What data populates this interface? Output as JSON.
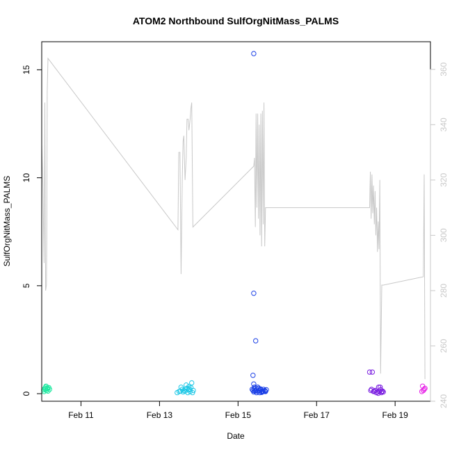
{
  "chart_data": {
    "type": "scatter",
    "title": "ATOM2 Northbound SulfOrgNitMass_PALMS",
    "xlabel": "Date",
    "ylabel": "SulfOrgNitMass_PALMS",
    "x_unit": "days (Feb)",
    "xlim": [
      10.0,
      19.9
    ],
    "ylim": [
      -0.35,
      16.3
    ],
    "x_ticks": [
      {
        "value": 11,
        "label": "Feb 11"
      },
      {
        "value": 13,
        "label": "Feb 13"
      },
      {
        "value": 15,
        "label": "Feb 15"
      },
      {
        "value": 17,
        "label": "Feb 17"
      },
      {
        "value": 19,
        "label": "Feb 19"
      }
    ],
    "y_ticks": [
      {
        "value": 0,
        "label": "0"
      },
      {
        "value": 5,
        "label": "5"
      },
      {
        "value": 10,
        "label": "10"
      },
      {
        "value": 15,
        "label": "15"
      }
    ],
    "y2lim": [
      240,
      370
    ],
    "y2_ticks": [
      {
        "value": 240,
        "label": "240"
      },
      {
        "value": 260,
        "label": "260"
      },
      {
        "value": 280,
        "label": "280"
      },
      {
        "value": 300,
        "label": "300"
      },
      {
        "value": 320,
        "label": "320"
      },
      {
        "value": 340,
        "label": "340"
      },
      {
        "value": 360,
        "label": "360"
      }
    ],
    "grid": false,
    "legend": "none",
    "series": [
      {
        "color": "#1ee8a0",
        "points": [
          [
            10.05,
            0.18
          ],
          [
            10.08,
            0.25
          ],
          [
            10.1,
            0.3
          ],
          [
            10.12,
            0.15
          ],
          [
            10.14,
            0.22
          ],
          [
            10.16,
            0.12
          ],
          [
            10.18,
            0.28
          ],
          [
            10.2,
            0.2
          ],
          [
            10.06,
            0.1
          ],
          [
            10.11,
            0.35
          ],
          [
            10.15,
            0.26
          ],
          [
            10.09,
            0.2
          ]
        ]
      },
      {
        "color": "#1ec8e6",
        "points": [
          [
            13.45,
            0.05
          ],
          [
            13.5,
            0.1
          ],
          [
            13.55,
            0.3
          ],
          [
            13.58,
            0.2
          ],
          [
            13.6,
            0.08
          ],
          [
            13.62,
            0.15
          ],
          [
            13.65,
            0.12
          ],
          [
            13.68,
            0.4
          ],
          [
            13.7,
            0.25
          ],
          [
            13.72,
            0.05
          ],
          [
            13.74,
            0.18
          ],
          [
            13.76,
            0.22
          ],
          [
            13.78,
            0.1
          ],
          [
            13.8,
            0.28
          ],
          [
            13.82,
            0.5
          ],
          [
            13.84,
            0.05
          ],
          [
            13.86,
            0.15
          ],
          [
            13.66,
            0.2
          ],
          [
            13.75,
            0.33
          ],
          [
            13.53,
            0.12
          ]
        ]
      },
      {
        "color": "#1a3fe6",
        "points": [
          [
            15.4,
            15.75
          ],
          [
            15.4,
            4.65
          ],
          [
            15.45,
            2.45
          ],
          [
            15.38,
            0.85
          ],
          [
            15.4,
            0.45
          ],
          [
            15.42,
            0.3
          ],
          [
            15.45,
            0.15
          ],
          [
            15.48,
            0.2
          ],
          [
            15.5,
            0.1
          ],
          [
            15.52,
            0.25
          ],
          [
            15.55,
            0.05
          ],
          [
            15.58,
            0.18
          ],
          [
            15.6,
            0.12
          ],
          [
            15.62,
            0.08
          ],
          [
            15.65,
            0.2
          ],
          [
            15.68,
            0.15
          ],
          [
            15.7,
            0.1
          ],
          [
            15.72,
            0.18
          ],
          [
            15.38,
            0.15
          ],
          [
            15.4,
            0.08
          ],
          [
            15.43,
            0.12
          ],
          [
            15.47,
            0.05
          ],
          [
            15.5,
            0.3
          ],
          [
            15.53,
            0.15
          ],
          [
            15.57,
            0.22
          ],
          [
            15.6,
            0.06
          ],
          [
            15.64,
            0.1
          ],
          [
            15.69,
            0.12
          ],
          [
            15.36,
            0.2
          ],
          [
            15.41,
            0.22
          ]
        ]
      },
      {
        "color": "#7a1ee0",
        "points": [
          [
            18.35,
            1.0
          ],
          [
            18.42,
            1.0
          ],
          [
            18.4,
            0.2
          ],
          [
            18.45,
            0.1
          ],
          [
            18.5,
            0.15
          ],
          [
            18.52,
            0.05
          ],
          [
            18.55,
            0.08
          ],
          [
            18.58,
            0.3
          ],
          [
            18.6,
            0.1
          ],
          [
            18.62,
            0.3
          ],
          [
            18.65,
            0.05
          ],
          [
            18.68,
            0.12
          ],
          [
            18.7,
            0.08
          ],
          [
            18.38,
            0.15
          ],
          [
            18.47,
            0.12
          ],
          [
            18.63,
            0.18
          ],
          [
            18.57,
            0.02
          ],
          [
            18.66,
            0.1
          ]
        ]
      },
      {
        "color": "#e61ee6",
        "points": [
          [
            19.7,
            0.35
          ],
          [
            19.72,
            0.15
          ],
          [
            19.74,
            0.2
          ],
          [
            19.68,
            0.1
          ],
          [
            19.76,
            0.25
          ]
        ]
      }
    ],
    "secondary_line": {
      "color": "#c8c8c8",
      "points": [
        [
          10.0,
          333
        ],
        [
          10.03,
          318
        ],
        [
          10.06,
          290
        ],
        [
          10.08,
          348
        ],
        [
          10.1,
          280
        ],
        [
          10.12,
          282
        ],
        [
          10.13,
          300
        ],
        [
          10.14,
          352
        ],
        [
          10.16,
          364
        ],
        [
          13.47,
          302
        ],
        [
          13.49,
          330
        ],
        [
          13.52,
          330
        ],
        [
          13.55,
          286
        ],
        [
          13.58,
          320
        ],
        [
          13.6,
          334
        ],
        [
          13.62,
          336
        ],
        [
          13.65,
          320
        ],
        [
          13.68,
          328
        ],
        [
          13.7,
          342
        ],
        [
          13.73,
          342
        ],
        [
          13.75,
          338
        ],
        [
          13.78,
          342
        ],
        [
          13.8,
          346
        ],
        [
          13.82,
          348
        ],
        [
          13.85,
          303
        ],
        [
          15.4,
          325
        ],
        [
          15.42,
          328
        ],
        [
          15.44,
          303
        ],
        [
          15.46,
          344
        ],
        [
          15.48,
          310
        ],
        [
          15.5,
          344
        ],
        [
          15.52,
          306
        ],
        [
          15.54,
          340
        ],
        [
          15.56,
          300
        ],
        [
          15.58,
          344
        ],
        [
          15.6,
          296
        ],
        [
          15.62,
          345
        ],
        [
          15.64,
          304
        ],
        [
          15.66,
          348
        ],
        [
          15.68,
          296
        ],
        [
          15.7,
          310
        ],
        [
          15.74,
          310
        ],
        [
          18.35,
          310
        ],
        [
          18.37,
          323
        ],
        [
          18.39,
          306
        ],
        [
          18.41,
          322
        ],
        [
          18.43,
          308
        ],
        [
          18.45,
          318
        ],
        [
          18.47,
          304
        ],
        [
          18.49,
          316
        ],
        [
          18.51,
          300
        ],
        [
          18.53,
          310
        ],
        [
          18.55,
          294
        ],
        [
          18.57,
          305
        ],
        [
          18.59,
          295
        ],
        [
          18.61,
          320
        ],
        [
          18.63,
          250
        ],
        [
          18.66,
          282
        ],
        [
          18.7,
          282
        ],
        [
          19.72,
          285
        ],
        [
          19.74,
          322
        ],
        [
          19.76,
          248
        ]
      ]
    }
  }
}
